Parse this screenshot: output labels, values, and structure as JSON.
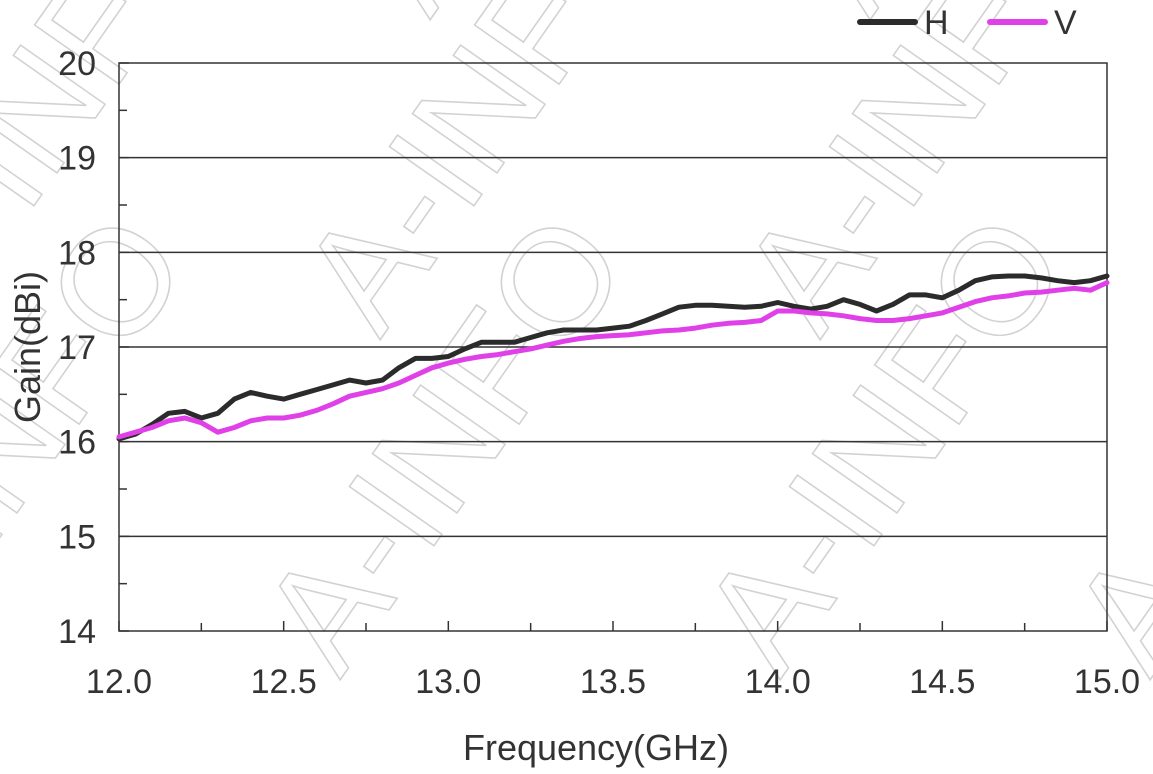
{
  "chart_data": {
    "type": "line",
    "xlabel": "Frequency(GHz)",
    "ylabel": "Gain(dBi)",
    "xlim": [
      12.0,
      15.0
    ],
    "ylim": [
      14,
      20
    ],
    "x_ticks": [
      "12.0",
      "12.5",
      "13.0",
      "13.5",
      "14.0",
      "14.5",
      "15.0"
    ],
    "y_ticks": [
      "14",
      "15",
      "16",
      "17",
      "18",
      "19",
      "20"
    ],
    "grid": "horizontal",
    "legend_position": "top-right",
    "watermark": "A-INFO",
    "series": [
      {
        "name": "H",
        "color": "#2b2b2b",
        "points": [
          [
            12.0,
            16.03
          ],
          [
            12.05,
            16.08
          ],
          [
            12.1,
            16.18
          ],
          [
            12.15,
            16.3
          ],
          [
            12.2,
            16.32
          ],
          [
            12.25,
            16.25
          ],
          [
            12.3,
            16.3
          ],
          [
            12.35,
            16.45
          ],
          [
            12.4,
            16.52
          ],
          [
            12.45,
            16.48
          ],
          [
            12.5,
            16.45
          ],
          [
            12.55,
            16.5
          ],
          [
            12.6,
            16.55
          ],
          [
            12.65,
            16.6
          ],
          [
            12.7,
            16.65
          ],
          [
            12.75,
            16.62
          ],
          [
            12.8,
            16.65
          ],
          [
            12.85,
            16.78
          ],
          [
            12.9,
            16.88
          ],
          [
            12.95,
            16.88
          ],
          [
            13.0,
            16.9
          ],
          [
            13.05,
            16.98
          ],
          [
            13.1,
            17.05
          ],
          [
            13.15,
            17.05
          ],
          [
            13.2,
            17.05
          ],
          [
            13.25,
            17.1
          ],
          [
            13.3,
            17.15
          ],
          [
            13.35,
            17.18
          ],
          [
            13.4,
            17.18
          ],
          [
            13.45,
            17.18
          ],
          [
            13.5,
            17.2
          ],
          [
            13.55,
            17.22
          ],
          [
            13.6,
            17.28
          ],
          [
            13.65,
            17.35
          ],
          [
            13.7,
            17.42
          ],
          [
            13.75,
            17.44
          ],
          [
            13.8,
            17.44
          ],
          [
            13.85,
            17.43
          ],
          [
            13.9,
            17.42
          ],
          [
            13.95,
            17.43
          ],
          [
            14.0,
            17.47
          ],
          [
            14.05,
            17.43
          ],
          [
            14.1,
            17.4
          ],
          [
            14.15,
            17.43
          ],
          [
            14.2,
            17.5
          ],
          [
            14.25,
            17.45
          ],
          [
            14.3,
            17.38
          ],
          [
            14.35,
            17.45
          ],
          [
            14.4,
            17.55
          ],
          [
            14.45,
            17.55
          ],
          [
            14.5,
            17.52
          ],
          [
            14.55,
            17.6
          ],
          [
            14.6,
            17.7
          ],
          [
            14.65,
            17.74
          ],
          [
            14.7,
            17.75
          ],
          [
            14.75,
            17.75
          ],
          [
            14.8,
            17.73
          ],
          [
            14.85,
            17.7
          ],
          [
            14.9,
            17.68
          ],
          [
            14.95,
            17.7
          ],
          [
            15.0,
            17.75
          ]
        ]
      },
      {
        "name": "V",
        "color": "#e040e8",
        "points": [
          [
            12.0,
            16.05
          ],
          [
            12.05,
            16.1
          ],
          [
            12.1,
            16.15
          ],
          [
            12.15,
            16.22
          ],
          [
            12.2,
            16.25
          ],
          [
            12.25,
            16.2
          ],
          [
            12.3,
            16.1
          ],
          [
            12.35,
            16.15
          ],
          [
            12.4,
            16.22
          ],
          [
            12.45,
            16.25
          ],
          [
            12.5,
            16.25
          ],
          [
            12.55,
            16.28
          ],
          [
            12.6,
            16.33
          ],
          [
            12.65,
            16.4
          ],
          [
            12.7,
            16.48
          ],
          [
            12.75,
            16.52
          ],
          [
            12.8,
            16.56
          ],
          [
            12.85,
            16.62
          ],
          [
            12.9,
            16.7
          ],
          [
            12.95,
            16.78
          ],
          [
            13.0,
            16.83
          ],
          [
            13.05,
            16.87
          ],
          [
            13.1,
            16.9
          ],
          [
            13.15,
            16.92
          ],
          [
            13.2,
            16.95
          ],
          [
            13.25,
            16.98
          ],
          [
            13.3,
            17.02
          ],
          [
            13.35,
            17.06
          ],
          [
            13.4,
            17.09
          ],
          [
            13.45,
            17.11
          ],
          [
            13.5,
            17.12
          ],
          [
            13.55,
            17.13
          ],
          [
            13.6,
            17.15
          ],
          [
            13.65,
            17.17
          ],
          [
            13.7,
            17.18
          ],
          [
            13.75,
            17.2
          ],
          [
            13.8,
            17.23
          ],
          [
            13.85,
            17.25
          ],
          [
            13.9,
            17.26
          ],
          [
            13.95,
            17.28
          ],
          [
            14.0,
            17.38
          ],
          [
            14.05,
            17.38
          ],
          [
            14.1,
            17.36
          ],
          [
            14.15,
            17.35
          ],
          [
            14.2,
            17.33
          ],
          [
            14.25,
            17.3
          ],
          [
            14.3,
            17.28
          ],
          [
            14.35,
            17.28
          ],
          [
            14.4,
            17.3
          ],
          [
            14.45,
            17.33
          ],
          [
            14.5,
            17.36
          ],
          [
            14.55,
            17.42
          ],
          [
            14.6,
            17.48
          ],
          [
            14.65,
            17.52
          ],
          [
            14.7,
            17.54
          ],
          [
            14.75,
            17.57
          ],
          [
            14.8,
            17.58
          ],
          [
            14.85,
            17.6
          ],
          [
            14.9,
            17.62
          ],
          [
            14.95,
            17.6
          ],
          [
            15.0,
            17.68
          ]
        ]
      }
    ]
  }
}
